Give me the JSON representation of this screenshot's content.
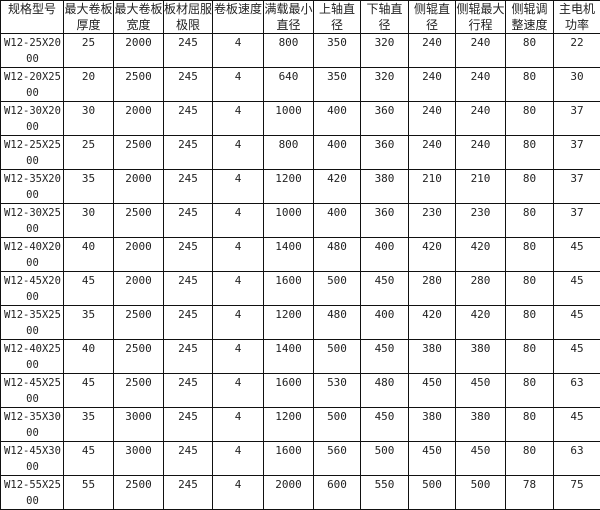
{
  "table": {
    "headers": [
      "规格型号",
      "最大卷板厚度",
      "最大卷板宽度",
      "板材屈服极限",
      "卷板速度",
      "满载最小直径",
      "上轴直径",
      "下轴直径",
      "侧辊直径",
      "侧辊最大行程",
      "侧辊调整速度",
      "主电机功率"
    ],
    "rows": [
      [
        "W12-25X2000",
        "25",
        "2000",
        "245",
        "4",
        "800",
        "350",
        "320",
        "240",
        "240",
        "80",
        "22"
      ],
      [
        "W12-20X2500",
        "20",
        "2500",
        "245",
        "4",
        "640",
        "350",
        "320",
        "240",
        "240",
        "80",
        "30"
      ],
      [
        "W12-30X2000",
        "30",
        "2000",
        "245",
        "4",
        "1000",
        "400",
        "360",
        "240",
        "240",
        "80",
        "37"
      ],
      [
        "W12-25X2500",
        "25",
        "2500",
        "245",
        "4",
        "800",
        "400",
        "360",
        "240",
        "240",
        "80",
        "37"
      ],
      [
        "W12-35X2000",
        "35",
        "2000",
        "245",
        "4",
        "1200",
        "420",
        "380",
        "210",
        "210",
        "80",
        "37"
      ],
      [
        "W12-30X2500",
        "30",
        "2500",
        "245",
        "4",
        "1000",
        "400",
        "360",
        "230",
        "230",
        "80",
        "37"
      ],
      [
        "W12-40X2000",
        "40",
        "2000",
        "245",
        "4",
        "1400",
        "480",
        "400",
        "420",
        "420",
        "80",
        "45"
      ],
      [
        "W12-45X2000",
        "45",
        "2000",
        "245",
        "4",
        "1600",
        "500",
        "450",
        "280",
        "280",
        "80",
        "45"
      ],
      [
        "W12-35X2500",
        "35",
        "2500",
        "245",
        "4",
        "1200",
        "480",
        "400",
        "420",
        "420",
        "80",
        "45"
      ],
      [
        "W12-40X2500",
        "40",
        "2500",
        "245",
        "4",
        "1400",
        "500",
        "450",
        "380",
        "380",
        "80",
        "45"
      ],
      [
        "W12-45X2500",
        "45",
        "2500",
        "245",
        "4",
        "1600",
        "530",
        "480",
        "450",
        "450",
        "80",
        "63"
      ],
      [
        "W12-35X3000",
        "35",
        "3000",
        "245",
        "4",
        "1200",
        "500",
        "450",
        "380",
        "380",
        "80",
        "45"
      ],
      [
        "W12-45X3000",
        "45",
        "3000",
        "245",
        "4",
        "1600",
        "560",
        "500",
        "450",
        "450",
        "80",
        "63"
      ],
      [
        "W12-55X2500",
        "55",
        "2500",
        "245",
        "4",
        "2000",
        "600",
        "550",
        "500",
        "500",
        "78",
        "75"
      ]
    ]
  }
}
